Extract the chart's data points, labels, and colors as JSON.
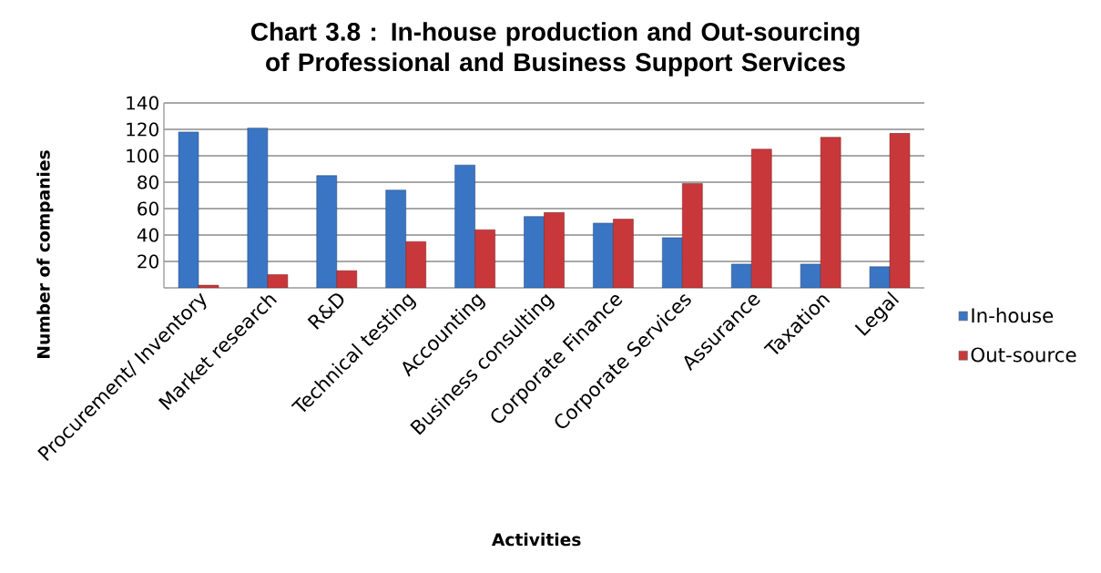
{
  "chart_data": {
    "type": "bar",
    "title": "Chart 3.8 : In-house production and Out-sourcing of Professional and Business Support Services",
    "xlabel": "Activities",
    "ylabel": "Number of companies",
    "categories": [
      "Procurement/ Inventory",
      "Market research",
      "R&D",
      "Technical testing",
      "Accounting",
      "Business consulting",
      "Corporate Finance",
      "Corporate Services",
      "Assurance",
      "Taxation",
      "Legal"
    ],
    "series": [
      {
        "name": "In-house",
        "color": "#3a75c4",
        "values": [
          118,
          121,
          85,
          74,
          93,
          54,
          49,
          38,
          18,
          18,
          16
        ]
      },
      {
        "name": "Out-source",
        "color": "#c8383a",
        "values": [
          2,
          10,
          13,
          35,
          44,
          57,
          52,
          79,
          105,
          114,
          117
        ]
      }
    ],
    "ylim": [
      0,
      140
    ],
    "yticks": [
      20,
      40,
      60,
      80,
      100,
      120,
      140
    ],
    "grid": "y",
    "legend": "right"
  }
}
